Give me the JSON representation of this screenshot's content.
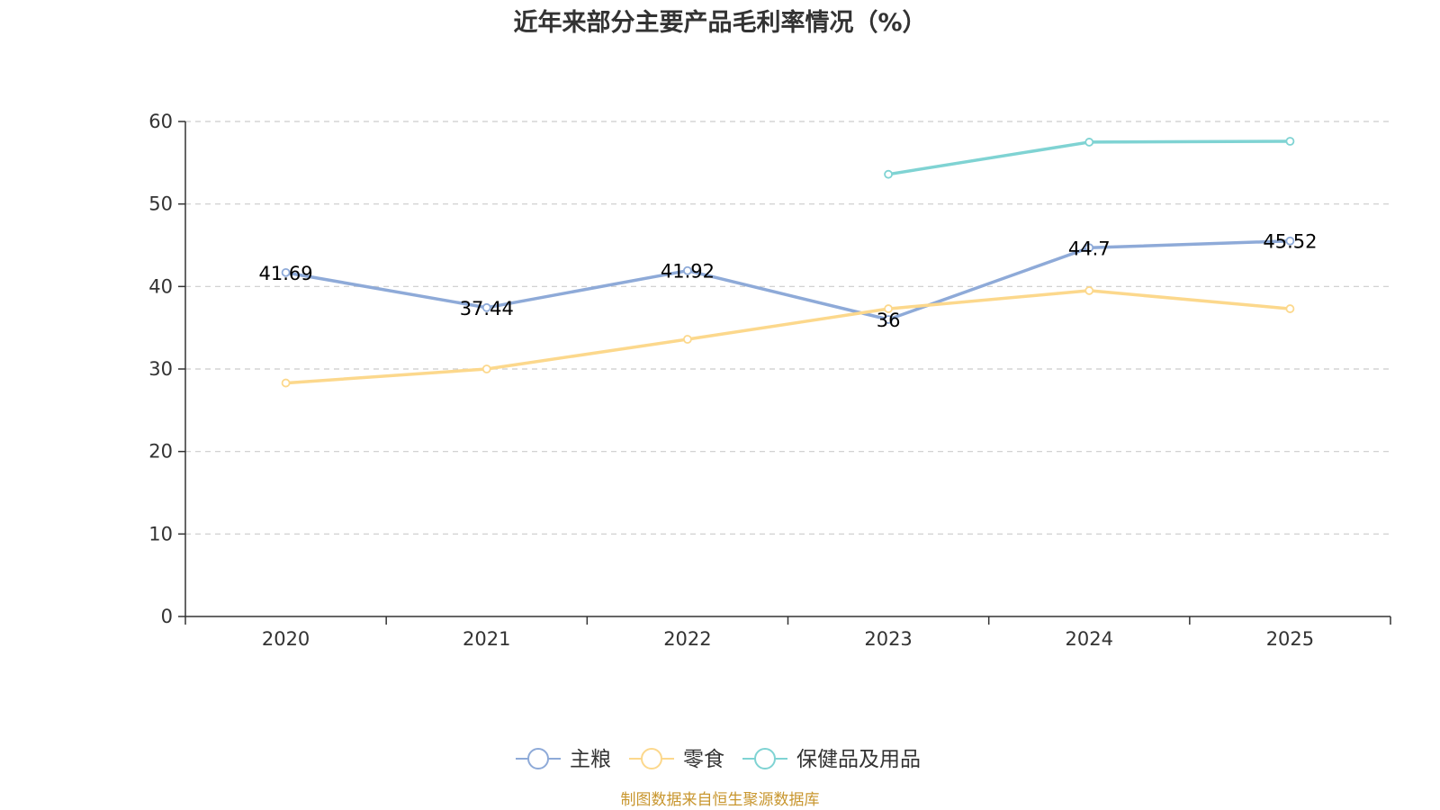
{
  "chart_data": {
    "type": "line",
    "title": "近年来部分主要产品毛利率情况（%）",
    "categories": [
      "2020",
      "2021",
      "2022",
      "2023",
      "2024",
      "2025"
    ],
    "ylim": [
      0,
      60
    ],
    "yticks": [
      0,
      10,
      20,
      30,
      40,
      50,
      60
    ],
    "grid": true,
    "legend_position": "bottom-center",
    "series": [
      {
        "name": "主粮",
        "color": "#8eaad8",
        "values": [
          41.69,
          37.44,
          41.92,
          36,
          44.7,
          45.52
        ],
        "show_labels": true
      },
      {
        "name": "零食",
        "color": "#fcd88c",
        "values": [
          28.3,
          30.0,
          33.6,
          37.3,
          39.5,
          37.3
        ],
        "show_labels": false
      },
      {
        "name": "保健品及用品",
        "color": "#7fd3d3",
        "values": [
          null,
          null,
          null,
          53.6,
          57.5,
          57.6
        ],
        "show_labels": false
      }
    ],
    "data_labels": [
      {
        "series": 0,
        "index": 0,
        "text": "41.69"
      },
      {
        "series": 0,
        "index": 1,
        "text": "37.44"
      },
      {
        "series": 0,
        "index": 2,
        "text": "41.92"
      },
      {
        "series": 0,
        "index": 3,
        "text": "36"
      },
      {
        "series": 0,
        "index": 4,
        "text": "44.7"
      },
      {
        "series": 0,
        "index": 5,
        "text": "45.52"
      }
    ]
  },
  "source_note": "制图数据来自恒生聚源数据库",
  "source_color": "#c8962e"
}
